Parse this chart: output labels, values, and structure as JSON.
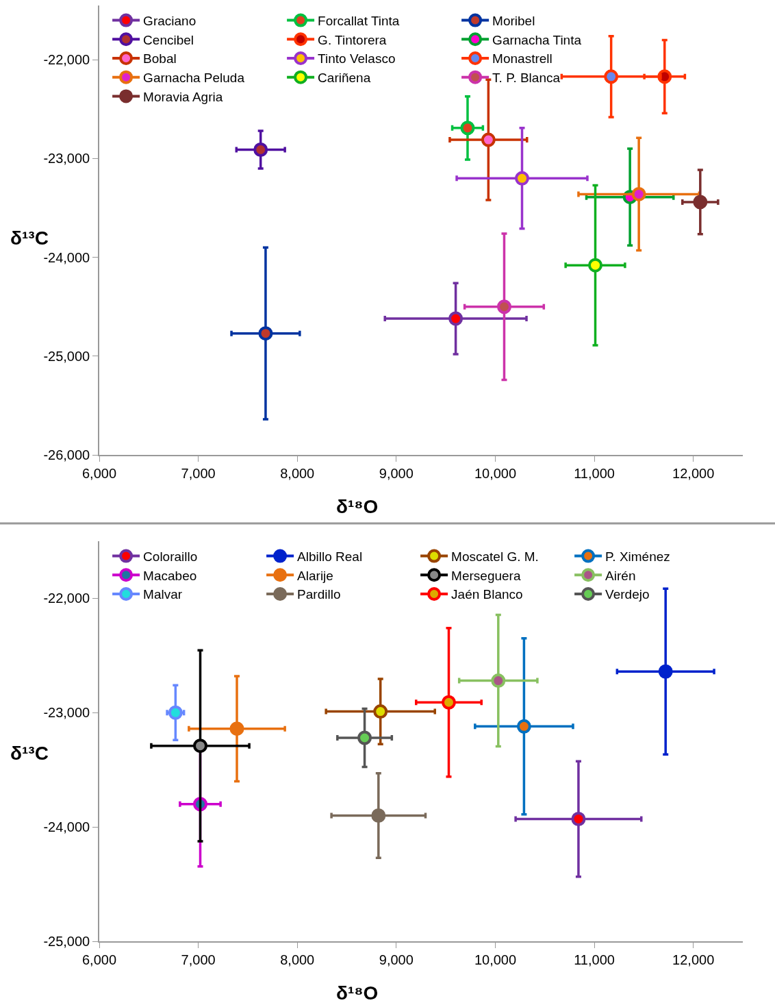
{
  "chart_data": [
    {
      "type": "scatter",
      "xlabel": "δ¹⁸O",
      "ylabel": "δ¹³C",
      "xlim": [
        6000,
        12500
      ],
      "ylim": [
        -26000,
        -21450
      ],
      "xticks": [
        {
          "value": 6000,
          "label": "6,000"
        },
        {
          "value": 7000,
          "label": "7,000"
        },
        {
          "value": 8000,
          "label": "8,000"
        },
        {
          "value": 9000,
          "label": "9,000"
        },
        {
          "value": 10000,
          "label": "10,000"
        },
        {
          "value": 11000,
          "label": "11,000"
        },
        {
          "value": 12000,
          "label": "12,000"
        }
      ],
      "yticks": [
        {
          "value": -26000,
          "label": "-26,000"
        },
        {
          "value": -25000,
          "label": "-25,000"
        },
        {
          "value": -24000,
          "label": "-24,000"
        },
        {
          "value": -23000,
          "label": "-23,000"
        },
        {
          "value": -22000,
          "label": "-22,000"
        }
      ],
      "legend": "top",
      "marker": "circle",
      "grid": false,
      "series": [
        {
          "name": "Graciano",
          "color": "#7030a0",
          "colors": [
            "#ff0000"
          ],
          "x": [
            9600
          ],
          "values": [
            -24620
          ],
          "xerrors": [
            715
          ],
          "errors": [
            360
          ]
        },
        {
          "name": "Forcallat Tinta",
          "color": "#00c040",
          "colors": [
            "#e04020"
          ],
          "x": [
            9720
          ],
          "values": [
            -22690
          ],
          "xerrors": [
            155
          ],
          "errors": [
            320
          ]
        },
        {
          "name": "Moribel",
          "color": "#0033a0",
          "colors": [
            "#c0392b"
          ],
          "x": [
            7680
          ],
          "values": [
            -24770
          ],
          "xerrors": [
            345
          ],
          "errors": [
            870
          ]
        },
        {
          "name": "Cencibel",
          "color": "#5010a0",
          "colors": [
            "#b03030"
          ],
          "x": [
            7630
          ],
          "values": [
            -22910
          ],
          "xerrors": [
            245
          ],
          "errors": [
            190
          ]
        },
        {
          "name": "G. Tintorera",
          "color": "#ff3300",
          "colors": [
            "#c00000"
          ],
          "x": [
            11710
          ],
          "values": [
            -22170
          ],
          "xerrors": [
            205
          ],
          "errors": [
            370
          ]
        },
        {
          "name": "Garnacha Tinta",
          "color": "#00a030",
          "colors": [
            "#ff00cc"
          ],
          "x": [
            11360
          ],
          "values": [
            -23390
          ],
          "xerrors": [
            440
          ],
          "errors": [
            490
          ]
        },
        {
          "name": "Bobal",
          "color": "#c83200",
          "colors": [
            "#ff66cc"
          ],
          "x": [
            9930
          ],
          "values": [
            -22810
          ],
          "xerrors": [
            390
          ],
          "errors": [
            610
          ]
        },
        {
          "name": "Tinto Velasco",
          "color": "#9933cc",
          "colors": [
            "#ffc000"
          ],
          "x": [
            10270
          ],
          "values": [
            -23200
          ],
          "xerrors": [
            660
          ],
          "errors": [
            510
          ]
        },
        {
          "name": "Monastrell",
          "color": "#ff3300",
          "colors": [
            "#6688ee"
          ],
          "x": [
            11170
          ],
          "values": [
            -22170
          ],
          "xerrors": [
            500
          ],
          "errors": [
            410
          ]
        },
        {
          "name": "Garnacha Peluda",
          "color": "#e87010",
          "colors": [
            "#dd22cc"
          ],
          "x": [
            11450
          ],
          "values": [
            -23360
          ],
          "xerrors": [
            610
          ],
          "errors": [
            570
          ]
        },
        {
          "name": "Cariñena",
          "color": "#10b020",
          "colors": [
            "#ffff00"
          ],
          "x": [
            11010
          ],
          "values": [
            -24080
          ],
          "xerrors": [
            300
          ],
          "errors": [
            810
          ]
        },
        {
          "name": "T. P. Blanca",
          "color": "#cc33aa",
          "colors": [
            "#c05050"
          ],
          "x": [
            10090
          ],
          "values": [
            -24500
          ],
          "xerrors": [
            400
          ],
          "errors": [
            740
          ]
        },
        {
          "name": "Moravia Agria",
          "color": "#7a2e2e",
          "colors": [
            "#7a2e2e"
          ],
          "x": [
            12070
          ],
          "values": [
            -23440
          ],
          "xerrors": [
            180
          ],
          "errors": [
            325
          ]
        }
      ]
    },
    {
      "type": "scatter",
      "xlabel": "δ¹⁸O",
      "ylabel": "δ¹³C",
      "xlim": [
        6000,
        12500
      ],
      "ylim": [
        -25000,
        -21500
      ],
      "xticks": [
        {
          "value": 6000,
          "label": "6,000"
        },
        {
          "value": 7000,
          "label": "7,000"
        },
        {
          "value": 8000,
          "label": "8,000"
        },
        {
          "value": 9000,
          "label": "9,000"
        },
        {
          "value": 10000,
          "label": "10,000"
        },
        {
          "value": 11000,
          "label": "11,000"
        },
        {
          "value": 12000,
          "label": "12,000"
        }
      ],
      "yticks": [
        {
          "value": -25000,
          "label": "-25,000"
        },
        {
          "value": -24000,
          "label": "-24,000"
        },
        {
          "value": -23000,
          "label": "-23,000"
        },
        {
          "value": -22000,
          "label": "-22,000"
        }
      ],
      "legend": "top",
      "marker": "circle",
      "grid": false,
      "series": [
        {
          "name": "Coloraillo",
          "color": "#7030a0",
          "colors": [
            "#ff0000"
          ],
          "x": [
            10840
          ],
          "values": [
            -23930
          ],
          "xerrors": [
            635
          ],
          "errors": [
            505
          ]
        },
        {
          "name": "Albillo Real",
          "color": "#0022cc",
          "colors": [
            "#0022cc"
          ],
          "x": [
            11720
          ],
          "values": [
            -22640
          ],
          "xerrors": [
            490
          ],
          "errors": [
            725
          ]
        },
        {
          "name": "Moscatel G. M.",
          "color": "#994400",
          "colors": [
            "#dddd00"
          ],
          "x": [
            8840
          ],
          "values": [
            -22990
          ],
          "xerrors": [
            550
          ],
          "errors": [
            285
          ]
        },
        {
          "name": "P. Ximénez",
          "color": "#0070c0",
          "colors": [
            "#e87010"
          ],
          "x": [
            10290
          ],
          "values": [
            -23120
          ],
          "xerrors": [
            495
          ],
          "errors": [
            770
          ]
        },
        {
          "name": "Macabeo",
          "color": "#cc00cc",
          "colors": [
            "#1f77a0"
          ],
          "x": [
            7020
          ],
          "values": [
            -23800
          ],
          "xerrors": [
            205
          ],
          "errors": [
            545
          ]
        },
        {
          "name": "Alarije",
          "color": "#e87010",
          "colors": [
            "#e87010"
          ],
          "x": [
            7390
          ],
          "values": [
            -23140
          ],
          "xerrors": [
            485
          ],
          "errors": [
            460
          ]
        },
        {
          "name": "Merseguera",
          "color": "#000000",
          "colors": [
            "#888888"
          ],
          "x": [
            7020
          ],
          "values": [
            -23290
          ],
          "xerrors": [
            495
          ],
          "errors": [
            835
          ]
        },
        {
          "name": "Airén",
          "color": "#88c060",
          "colors": [
            "#aa5588"
          ],
          "x": [
            10030
          ],
          "values": [
            -22720
          ],
          "xerrors": [
            395
          ],
          "errors": [
            575
          ]
        },
        {
          "name": "Malvar",
          "color": "#6688ff",
          "colors": [
            "#22dddd"
          ],
          "x": [
            6770
          ],
          "values": [
            -23000
          ],
          "xerrors": [
            85
          ],
          "errors": [
            240
          ]
        },
        {
          "name": "Pardillo",
          "color": "#7a6a5a",
          "colors": [
            "#7a6a5a"
          ],
          "x": [
            8820
          ],
          "values": [
            -23900
          ],
          "xerrors": [
            475
          ],
          "errors": [
            370
          ]
        },
        {
          "name": "Jaén Blanco",
          "color": "#ff0000",
          "colors": [
            "#ddaa00"
          ],
          "x": [
            9530
          ],
          "values": [
            -22910
          ],
          "xerrors": [
            330
          ],
          "errors": [
            650
          ]
        },
        {
          "name": "Verdejo",
          "color": "#555555",
          "colors": [
            "#66cc55"
          ],
          "x": [
            8680
          ],
          "values": [
            -23220
          ],
          "xerrors": [
            275
          ],
          "errors": [
            255
          ]
        }
      ]
    }
  ]
}
